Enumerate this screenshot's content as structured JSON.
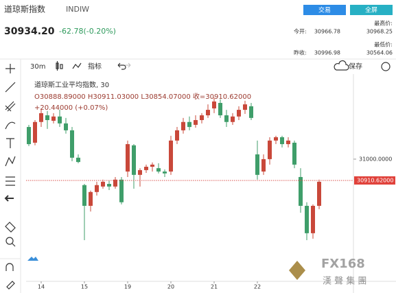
{
  "header": {
    "name": "道琼斯指数",
    "code": "INDIW",
    "price": "30934.20",
    "change": "-62.78(-0.20%)",
    "buttons": [
      "交易",
      "全屏"
    ],
    "stats": [
      {
        "label": "最高价:",
        "value": "30968.25"
      },
      {
        "label": "今开:",
        "value": "30966.78"
      },
      {
        "label": "最低价:",
        "value": "30564.06"
      },
      {
        "label": "昨收:",
        "value": "30996.98"
      }
    ]
  },
  "toolbar": {
    "interval": "30m",
    "indicators": "指标",
    "save": "保存"
  },
  "watermark": {
    "brand": "FX168",
    "company": "漢 聲 集 團"
  },
  "chart_data": {
    "type": "candlestick",
    "title": "道琼斯工业平均指数, 30",
    "legend_ohlc": "O30888.89000 H30911.03000 L30854.07000 收=30910.62000",
    "legend_change": "+20.44000 (+0.07%)",
    "up_color": "#c9483a",
    "down_color": "#3f9e6a",
    "categories": [
      null,
      null,
      "14",
      null,
      null,
      null,
      null,
      null,
      null,
      "15",
      null,
      null,
      null,
      null,
      null,
      null,
      "19",
      null,
      null,
      null,
      null,
      null,
      null,
      "20",
      null,
      null,
      null,
      null,
      null,
      null,
      "21",
      null,
      null,
      null,
      null,
      null,
      null,
      "22",
      null,
      null,
      null,
      null,
      null,
      null,
      null,
      null,
      null,
      null
    ],
    "open": [
      31135,
      31069,
      31156,
      31184,
      31161,
      31179,
      31150,
      31121,
      31006,
      30891,
      30804,
      30862,
      30885,
      30896,
      30885,
      30914,
      30948,
      31058,
      30934,
      30954,
      30968,
      30962,
      30948,
      30948,
      31078,
      31121,
      31156,
      31144,
      31164,
      31184,
      31213,
      31236,
      31184,
      31156,
      31179,
      31207,
      31222,
      31020,
      30948,
      31000,
      31078,
      31092,
      31063,
      31069,
      30925,
      30804,
      30689,
      30804
    ],
    "high": [
      31144,
      31164,
      31213,
      31202,
      31193,
      31208,
      31173,
      31135,
      31020,
      30896,
      30868,
      30905,
      30914,
      30911,
      30925,
      30925,
      31078,
      31063,
      30962,
      30977,
      30986,
      30983,
      30957,
      31098,
      31135,
      31173,
      31179,
      31184,
      31193,
      31230,
      31259,
      31251,
      31207,
      31193,
      31222,
      31245,
      31236,
      31078,
      31020,
      31092,
      31098,
      31098,
      31092,
      31078,
      30962,
      30819,
      30810,
      30914
    ],
    "low": [
      31055,
      31058,
      31135,
      31127,
      31150,
      31135,
      31107,
      30991,
      30983,
      30660,
      30780,
      30847,
      30876,
      30870,
      30876,
      30810,
      30925,
      30876,
      30885,
      30942,
      30948,
      30940,
      30925,
      30934,
      31063,
      31107,
      31121,
      31132,
      31150,
      31173,
      31193,
      31173,
      31135,
      31144,
      31164,
      31190,
      31164,
      30914,
      30934,
      30977,
      31063,
      31049,
      31049,
      30962,
      30775,
      30660,
      30666,
      30790
    ],
    "close": [
      31063,
      31156,
      31193,
      31164,
      31179,
      31150,
      31121,
      31006,
      30988,
      30804,
      30862,
      30891,
      30905,
      30885,
      30914,
      30819,
      31063,
      30934,
      30954,
      30968,
      30977,
      30948,
      30940,
      31078,
      31121,
      31156,
      31135,
      31164,
      31184,
      31207,
      31242,
      31184,
      31156,
      31179,
      31207,
      31230,
      31173,
      30934,
      31000,
      31078,
      31092,
      31063,
      31078,
      30977,
      30804,
      30689,
      30804,
      30905
    ],
    "ylim": [
      30487,
      31357
    ],
    "yticks": [
      {
        "value": 31000,
        "label": "31000.0000"
      }
    ],
    "last_price": {
      "value": 30910.62,
      "label": "30910.62000"
    }
  }
}
